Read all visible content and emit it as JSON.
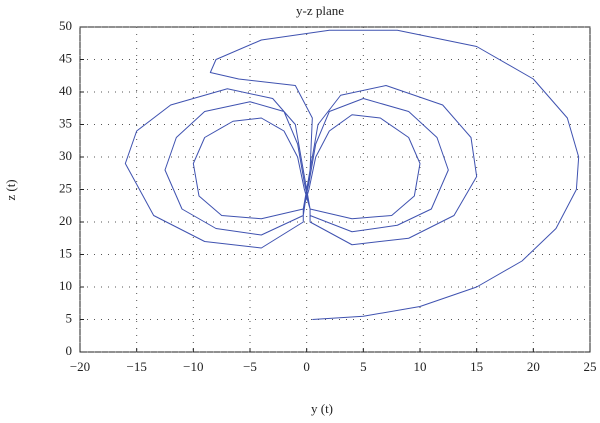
{
  "chart_data": {
    "type": "line",
    "title": "y-z plane",
    "x_label": "y (t)",
    "y_label": "z (t)",
    "color": "#3f52b0",
    "grid": true,
    "xlim": [
      -20,
      25
    ],
    "xticks": [
      {
        "value": -20,
        "label": "−20"
      },
      {
        "value": -15,
        "label": "−15"
      },
      {
        "value": -10,
        "label": "−10"
      },
      {
        "value": -5,
        "label": "−5"
      },
      0,
      5,
      10,
      15,
      20,
      25
    ],
    "ylim": [
      0,
      50
    ],
    "yticks": [
      0,
      5,
      10,
      15,
      20,
      25,
      30,
      35,
      40,
      45,
      50
    ],
    "x": [
      0.5,
      5,
      10,
      15,
      19,
      22,
      23.8,
      24,
      23,
      20,
      15,
      8,
      2,
      -4,
      -8,
      -8.5,
      -6,
      -1,
      0.5,
      0.3,
      -0.3,
      -4,
      -8,
      -11,
      -12.5,
      -11.5,
      -9,
      -5,
      -2,
      -0.8,
      -0.2,
      0.3,
      0.3,
      4,
      9,
      13,
      15,
      14.5,
      12,
      7,
      3,
      1,
      0.3,
      -0.3,
      -0.3,
      -4,
      -7.5,
      -9.5,
      -10,
      -9,
      -6.5,
      -4,
      -2,
      -0.8,
      -0.2,
      0.3,
      0.3,
      4,
      8,
      11,
      12.5,
      11.5,
      9,
      5,
      2,
      0.8,
      0.2,
      -0.3,
      -0.3,
      -4,
      -9,
      -13.5,
      -16,
      -15,
      -12,
      -7,
      -3,
      -1,
      -0.3,
      0.3,
      0.3,
      4,
      7.5,
      9.5,
      10,
      9,
      6.5,
      4,
      2,
      0.8,
      0.2,
      -0.3,
      -0.3,
      -4,
      -8,
      -11,
      -12.5,
      -11.5,
      -9,
      -5,
      -2,
      -0.8,
      -0.2,
      0.3,
      0.3,
      4,
      8,
      11,
      12.5,
      11.5,
      9,
      5,
      2,
      0.8,
      0.2,
      -0.3,
      -0.3,
      -4,
      -9,
      -13.5,
      -16,
      -15,
      -12,
      -7,
      -3,
      -1,
      -0.3,
      0.3,
      0.3,
      4,
      9,
      13,
      15,
      14.5,
      12,
      7,
      3,
      1,
      0.3,
      -0.3
    ],
    "values": [
      5,
      5.5,
      7,
      10,
      14,
      19,
      25,
      30,
      36,
      42,
      47,
      49.5,
      49.5,
      48,
      45,
      43,
      42,
      41,
      36,
      28,
      21,
      18,
      19,
      22,
      28,
      33,
      37,
      38.5,
      37,
      32,
      26,
      22,
      20,
      16.5,
      17.5,
      21,
      27,
      33,
      38,
      41,
      39.5,
      35,
      28,
      22,
      22,
      20.5,
      21,
      24,
      29,
      33,
      35.5,
      36,
      34,
      30,
      25,
      22,
      21,
      18.5,
      19.5,
      22,
      28,
      33,
      37,
      39,
      37,
      32,
      26,
      22,
      20,
      16,
      17,
      21,
      29,
      34,
      38,
      40.5,
      39,
      35,
      28,
      22,
      22,
      20.5,
      21,
      24,
      29,
      33,
      36,
      36.5,
      34,
      30,
      25,
      22,
      21,
      18,
      19,
      22,
      28,
      33,
      37,
      38.5,
      37,
      32,
      26,
      22,
      21,
      18.5,
      19.5,
      22,
      28,
      33,
      37,
      39,
      37,
      32,
      26,
      22,
      20,
      16,
      17,
      21,
      29,
      34,
      38,
      40.5,
      39,
      35,
      28,
      22,
      20,
      16.5,
      17.5,
      21,
      27,
      33,
      38,
      41,
      39.5,
      35,
      28,
      22
    ]
  }
}
